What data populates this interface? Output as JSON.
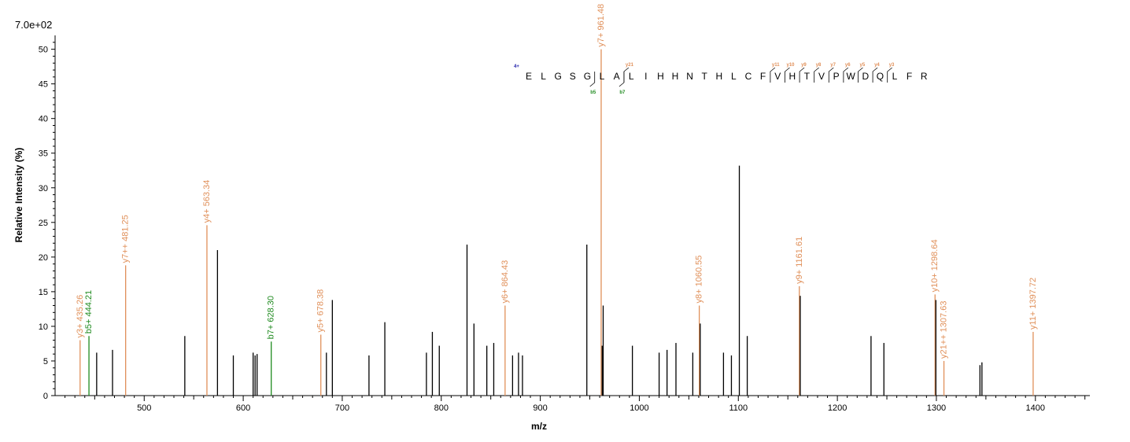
{
  "scale_label": "7.0e+02",
  "chart_data": {
    "type": "bar",
    "xlabel": "m/z",
    "ylabel": "Relative   Intensity (%)",
    "xlim": [
      410,
      1455
    ],
    "ylim": [
      0,
      52
    ],
    "x_ticks": [
      500,
      600,
      700,
      800,
      900,
      1000,
      1100,
      1200,
      1300,
      1400
    ],
    "x_tick_labels": [
      "500",
      "600",
      "700",
      "800",
      "900",
      "1000",
      "1100",
      "1200",
      "1300",
      "1400"
    ],
    "y_ticks": [
      0,
      5,
      10,
      15,
      20,
      25,
      30,
      35,
      40,
      45,
      50
    ],
    "y_tick_labels": [
      "0",
      "5",
      "10",
      "15",
      "20",
      "25",
      "30",
      "35",
      "40",
      "45",
      "50"
    ],
    "colors": {
      "y_ion": "#e0905a",
      "b_ion": "#1e8a1e",
      "other": "#000000",
      "charge": "#1a1aa8"
    },
    "peaks": [
      {
        "mz": 435.26,
        "intensity": 8.0,
        "type": "y",
        "label": "y3+ 435.26"
      },
      {
        "mz": 444.21,
        "intensity": 8.6,
        "type": "b",
        "label": "b5+ 444.21"
      },
      {
        "mz": 452.0,
        "intensity": 6.2,
        "type": "other"
      },
      {
        "mz": 468.0,
        "intensity": 6.6,
        "type": "other"
      },
      {
        "mz": 481.25,
        "intensity": 18.8,
        "type": "y",
        "label": "y7++ 481.25"
      },
      {
        "mz": 541.0,
        "intensity": 8.6,
        "type": "other"
      },
      {
        "mz": 563.34,
        "intensity": 24.6,
        "type": "y",
        "label": "y4+ 563.34"
      },
      {
        "mz": 574.0,
        "intensity": 21.0,
        "type": "other"
      },
      {
        "mz": 590.0,
        "intensity": 5.8,
        "type": "other"
      },
      {
        "mz": 610.0,
        "intensity": 6.2,
        "type": "other"
      },
      {
        "mz": 612.0,
        "intensity": 5.8,
        "type": "other"
      },
      {
        "mz": 614.0,
        "intensity": 6.0,
        "type": "other"
      },
      {
        "mz": 628.3,
        "intensity": 7.8,
        "type": "b",
        "label": "b7+ 628.30"
      },
      {
        "mz": 678.38,
        "intensity": 8.8,
        "type": "y",
        "label": "y5+ 678.38"
      },
      {
        "mz": 684.0,
        "intensity": 6.2,
        "type": "other"
      },
      {
        "mz": 690.0,
        "intensity": 13.8,
        "type": "other"
      },
      {
        "mz": 727.0,
        "intensity": 5.8,
        "type": "other"
      },
      {
        "mz": 743.0,
        "intensity": 10.6,
        "type": "other"
      },
      {
        "mz": 785.0,
        "intensity": 6.2,
        "type": "other"
      },
      {
        "mz": 791.0,
        "intensity": 9.2,
        "type": "other"
      },
      {
        "mz": 798.0,
        "intensity": 7.2,
        "type": "other"
      },
      {
        "mz": 826.0,
        "intensity": 21.8,
        "type": "other"
      },
      {
        "mz": 833.0,
        "intensity": 10.4,
        "type": "other"
      },
      {
        "mz": 846.0,
        "intensity": 7.2,
        "type": "other"
      },
      {
        "mz": 853.0,
        "intensity": 7.6,
        "type": "other"
      },
      {
        "mz": 864.43,
        "intensity": 13.0,
        "type": "y",
        "label": "y6+ 864.43"
      },
      {
        "mz": 872.0,
        "intensity": 5.8,
        "type": "other"
      },
      {
        "mz": 878.0,
        "intensity": 6.2,
        "type": "other"
      },
      {
        "mz": 882.0,
        "intensity": 5.8,
        "type": "other"
      },
      {
        "mz": 947.0,
        "intensity": 21.8,
        "type": "other"
      },
      {
        "mz": 961.48,
        "intensity": 50.0,
        "type": "y",
        "label": "y7+ 961.48"
      },
      {
        "mz": 962.5,
        "intensity": 7.2,
        "type": "other"
      },
      {
        "mz": 963.5,
        "intensity": 13.0,
        "type": "other"
      },
      {
        "mz": 993.0,
        "intensity": 7.2,
        "type": "other"
      },
      {
        "mz": 1020.0,
        "intensity": 6.2,
        "type": "other"
      },
      {
        "mz": 1028.0,
        "intensity": 6.6,
        "type": "other"
      },
      {
        "mz": 1037.0,
        "intensity": 7.6,
        "type": "other"
      },
      {
        "mz": 1054.0,
        "intensity": 6.2,
        "type": "other"
      },
      {
        "mz": 1060.55,
        "intensity": 13.0,
        "type": "y",
        "label": "y8+ 1060.55"
      },
      {
        "mz": 1061.5,
        "intensity": 10.4,
        "type": "other"
      },
      {
        "mz": 1085.0,
        "intensity": 6.2,
        "type": "other"
      },
      {
        "mz": 1093.0,
        "intensity": 5.8,
        "type": "other"
      },
      {
        "mz": 1101.0,
        "intensity": 33.2,
        "type": "other"
      },
      {
        "mz": 1109.0,
        "intensity": 8.6,
        "type": "other"
      },
      {
        "mz": 1161.61,
        "intensity": 15.8,
        "type": "y",
        "label": "y9+ 1161.61"
      },
      {
        "mz": 1162.5,
        "intensity": 14.4,
        "type": "other"
      },
      {
        "mz": 1234.0,
        "intensity": 8.6,
        "type": "other"
      },
      {
        "mz": 1247.0,
        "intensity": 7.6,
        "type": "other"
      },
      {
        "mz": 1298.64,
        "intensity": 14.6,
        "type": "y",
        "label": "y10+ 1298.64"
      },
      {
        "mz": 1299.5,
        "intensity": 13.8,
        "type": "other"
      },
      {
        "mz": 1307.63,
        "intensity": 5.0,
        "type": "y",
        "label": "y21++ 1307.63"
      },
      {
        "mz": 1344.0,
        "intensity": 4.4,
        "type": "other"
      },
      {
        "mz": 1346.0,
        "intensity": 4.8,
        "type": "other"
      },
      {
        "mz": 1397.72,
        "intensity": 9.2,
        "type": "y",
        "label": "y11+ 1397.72"
      }
    ],
    "sequence": {
      "charge": "4+",
      "residues": [
        "E",
        "L",
        "G",
        "S",
        "G",
        "L",
        "A",
        "L",
        "I",
        "H",
        "H",
        "N",
        "T",
        "H",
        "L",
        "C",
        "F",
        "V",
        "H",
        "T",
        "V",
        "P",
        "W",
        "D",
        "Q",
        "L",
        "F",
        "R"
      ],
      "y_breaks": [
        {
          "after": 7,
          "label": "y21"
        },
        {
          "after": 17,
          "label": "y11"
        },
        {
          "after": 18,
          "label": "y10"
        },
        {
          "after": 19,
          "label": "y9"
        },
        {
          "after": 20,
          "label": "y8"
        },
        {
          "after": 21,
          "label": "y7"
        },
        {
          "after": 22,
          "label": "y6"
        },
        {
          "after": 23,
          "label": "y5"
        },
        {
          "after": 24,
          "label": "y4"
        },
        {
          "after": 25,
          "label": "y3"
        }
      ],
      "b_breaks": [
        {
          "after": 5,
          "label": "b5"
        },
        {
          "after": 7,
          "label": "b7"
        }
      ]
    }
  }
}
